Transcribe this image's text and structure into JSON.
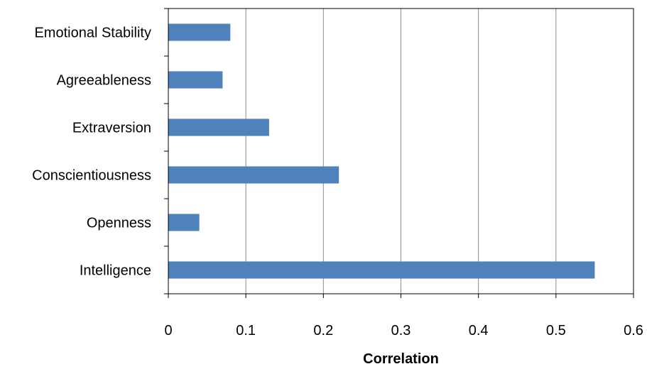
{
  "chart_data": {
    "type": "bar",
    "orientation": "horizontal",
    "categories": [
      "Emotional Stability",
      "Agreeableness",
      "Extraversion",
      "Conscientiousness",
      "Openness",
      "Intelligence"
    ],
    "values": [
      0.08,
      0.07,
      0.13,
      0.22,
      0.04,
      0.55
    ],
    "xlabel": "Correlation",
    "ylabel": "",
    "xlim": [
      0,
      0.6
    ],
    "xticks": [
      0,
      0.1,
      0.2,
      0.3,
      0.4,
      0.5,
      0.6
    ],
    "xtick_labels": [
      "0",
      "0.1",
      "0.2",
      "0.3",
      "0.4",
      "0.5",
      "0.6"
    ],
    "grid": "vertical",
    "legend": "none",
    "bar_color": "#4F81BD"
  }
}
